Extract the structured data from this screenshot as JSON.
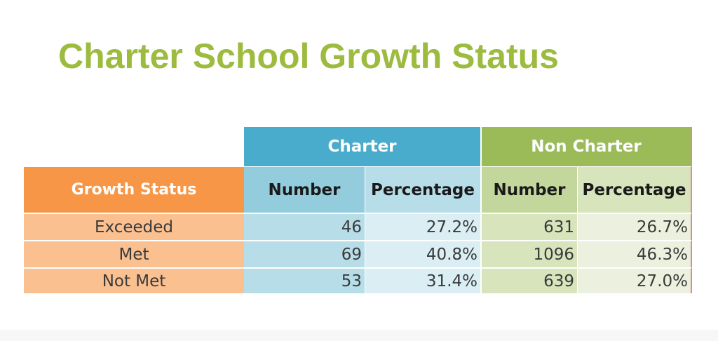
{
  "title": "Charter School Growth Status",
  "table": {
    "group_headers": [
      "Charter",
      "Non Charter"
    ],
    "row_header_label": "Growth Status",
    "sub_headers": [
      "Number",
      "Percentage",
      "Number",
      "Percentage"
    ],
    "rows": [
      {
        "label": "Exceeded",
        "charter_number": "46",
        "charter_percentage": "27.2%",
        "noncharter_number": "631",
        "noncharter_percentage": "26.7%"
      },
      {
        "label": "Met",
        "charter_number": "69",
        "charter_percentage": "40.8%",
        "noncharter_number": "1096",
        "noncharter_percentage": "46.3%"
      },
      {
        "label": "Not Met",
        "charter_number": "53",
        "charter_percentage": "31.4%",
        "noncharter_number": "639",
        "noncharter_percentage": "27.0%"
      }
    ]
  },
  "colors": {
    "title": "#9cbb3f",
    "charter_header": "#4aaccc",
    "noncharter_header": "#9bbb59",
    "growth_header": "#f79646",
    "row_label_bg": "#fac090"
  }
}
